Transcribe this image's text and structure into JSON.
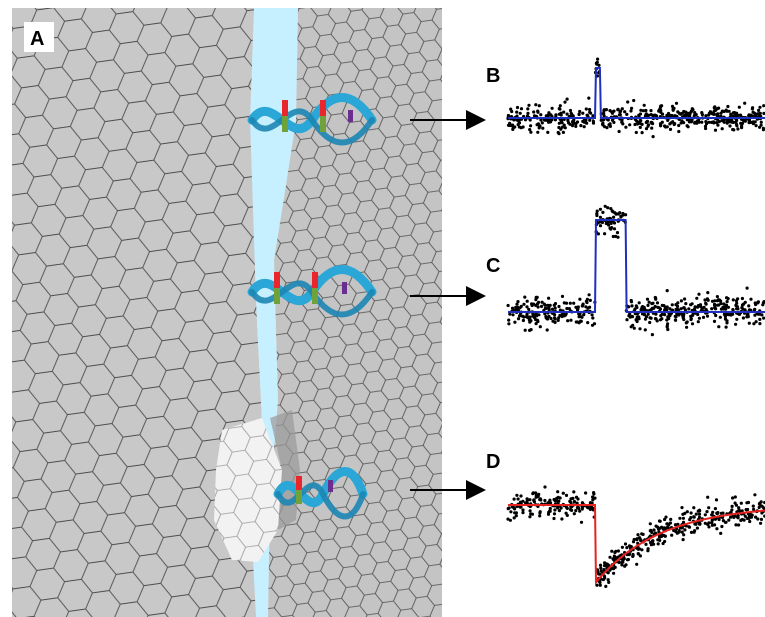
{
  "panels": {
    "a": {
      "label": "A"
    },
    "b": {
      "label": "B"
    },
    "c": {
      "label": "C"
    },
    "d": {
      "label": "D"
    }
  },
  "colors": {
    "sheet_fill": "#c8c8c8",
    "sheet_edge": "#555555",
    "pore": "#c6efff",
    "highlight_cells": "#f2f2f2",
    "helix_ribbon": "#2aa7d6",
    "helix_red": "#e8262b",
    "helix_green": "#6fa23a",
    "helix_purple": "#6b2d8f",
    "trace_blue": "#1f2fbf",
    "trace_red": "#e52421",
    "dots": "#000000",
    "arrow": "#000000"
  },
  "icons": [
    "graphene-sheet-illustration",
    "dna-helix-icon",
    "arrow-right-icon"
  ],
  "chart_data": [
    {
      "type": "scatter",
      "panel": "B",
      "description_shape": "short spike",
      "baseline": 0.0,
      "event": {
        "start": 0.34,
        "end": 0.36,
        "level": 1.0
      },
      "noise": 0.12,
      "fit_color": "blue"
    },
    {
      "type": "scatter",
      "panel": "C",
      "description_shape": "rectangular pulse",
      "baseline": 0.0,
      "event": {
        "start": 0.34,
        "end": 0.46,
        "level": 1.0
      },
      "noise": 0.08,
      "fit_color": "blue"
    },
    {
      "type": "scatter",
      "panel": "D",
      "description_shape": "drop with exponential recovery",
      "baseline": 0.0,
      "event": {
        "start": 0.34,
        "drop": -1.0,
        "recovery_tau": 0.25
      },
      "noise": 0.08,
      "fit_color": "red"
    }
  ]
}
